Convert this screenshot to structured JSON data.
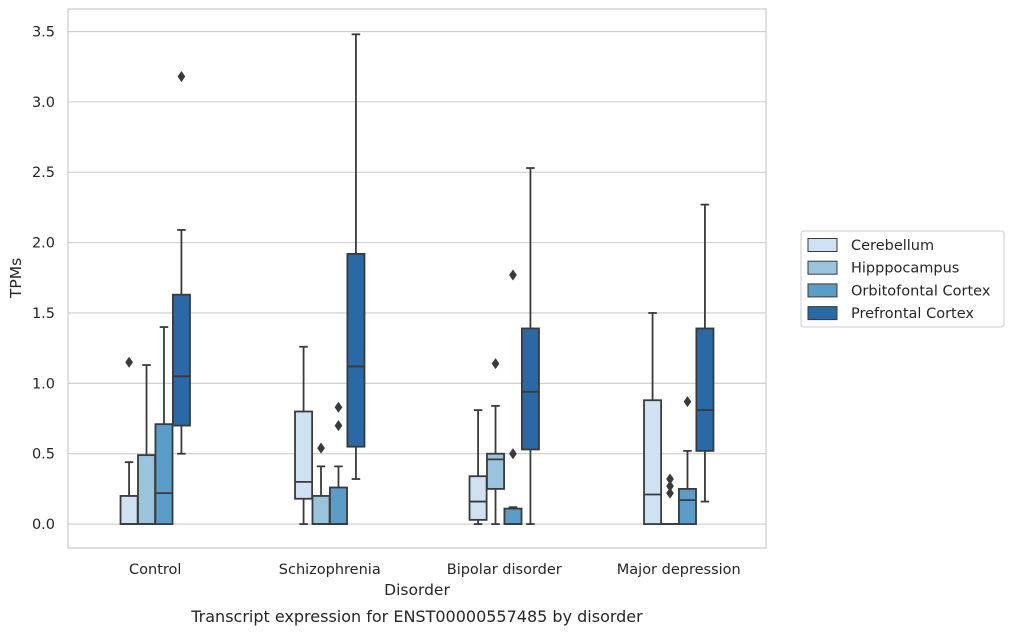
{
  "caption": "Transcript expression for ENST00000557485 by disorder",
  "chart_data": {
    "type": "box",
    "title": "",
    "xlabel": "Disorder",
    "ylabel": "TPMs",
    "ylim": [
      -0.17,
      3.66
    ],
    "yticks": [
      "0.0",
      "0.5",
      "1.0",
      "1.5",
      "2.0",
      "2.5",
      "3.0",
      "3.5"
    ],
    "ytick_values": [
      0,
      0.5,
      1.0,
      1.5,
      2.0,
      2.5,
      3.0,
      3.5
    ],
    "grid": true,
    "legend_position": "right",
    "categories": [
      "Control",
      "Schizophrenia",
      "Bipolar disorder",
      "Major depression"
    ],
    "series": [
      {
        "name": "Cerebellum",
        "color": "#d0e1f2",
        "boxes": [
          {
            "whisker_low": 0.0,
            "q1": 0.0,
            "median": 0.0,
            "q3": 0.2,
            "whisker_high": 0.44,
            "outliers": [
              1.15
            ]
          },
          {
            "whisker_low": 0.0,
            "q1": 0.18,
            "median": 0.3,
            "q3": 0.8,
            "whisker_high": 1.26,
            "outliers": []
          },
          {
            "whisker_low": 0.0,
            "q1": 0.03,
            "median": 0.16,
            "q3": 0.34,
            "whisker_high": 0.81,
            "outliers": []
          },
          {
            "whisker_low": 0.0,
            "q1": 0.0,
            "median": 0.21,
            "q3": 0.88,
            "whisker_high": 1.5,
            "outliers": []
          }
        ]
      },
      {
        "name": "Hipppocampus",
        "color": "#9ac3dc",
        "boxes": [
          {
            "whisker_low": 0.0,
            "q1": 0.0,
            "median": 0.0,
            "q3": 0.49,
            "whisker_high": 1.13,
            "outliers": []
          },
          {
            "whisker_low": 0.0,
            "q1": 0.0,
            "median": 0.0,
            "q3": 0.2,
            "whisker_high": 0.41,
            "outliers": [
              0.54
            ]
          },
          {
            "whisker_low": 0.0,
            "q1": 0.25,
            "median": 0.46,
            "q3": 0.5,
            "whisker_high": 0.84,
            "outliers": [
              1.14
            ]
          },
          {
            "whisker_low": 0.0,
            "q1": 0.0,
            "median": 0.0,
            "q3": 0.0,
            "whisker_high": 0.0,
            "outliers": [
              0.22,
              0.27,
              0.32
            ]
          }
        ]
      },
      {
        "name": "Orbitofontal Cortex",
        "color": "#5c9cc8",
        "boxes": [
          {
            "whisker_low": 0.0,
            "q1": 0.0,
            "median": 0.22,
            "q3": 0.71,
            "whisker_high": 1.4,
            "outliers": []
          },
          {
            "whisker_low": 0.0,
            "q1": 0.0,
            "median": 0.0,
            "q3": 0.26,
            "whisker_high": 0.41,
            "outliers": [
              0.7,
              0.83
            ]
          },
          {
            "whisker_low": 0.0,
            "q1": 0.0,
            "median": 0.0,
            "q3": 0.11,
            "whisker_high": 0.12,
            "outliers": [
              0.5,
              1.77
            ]
          },
          {
            "whisker_low": 0.0,
            "q1": 0.0,
            "median": 0.17,
            "q3": 0.25,
            "whisker_high": 0.52,
            "outliers": [
              0.87
            ]
          }
        ]
      },
      {
        "name": "Prefrontal Cortex",
        "color": "#2a68a6",
        "boxes": [
          {
            "whisker_low": 0.5,
            "q1": 0.7,
            "median": 1.05,
            "q3": 1.63,
            "whisker_high": 2.09,
            "outliers": [
              3.18
            ]
          },
          {
            "whisker_low": 0.32,
            "q1": 0.55,
            "median": 1.12,
            "q3": 1.92,
            "whisker_high": 3.48,
            "outliers": []
          },
          {
            "whisker_low": 0.0,
            "q1": 0.53,
            "median": 0.94,
            "q3": 1.39,
            "whisker_high": 2.53,
            "outliers": []
          },
          {
            "whisker_low": 0.16,
            "q1": 0.52,
            "median": 0.81,
            "q3": 1.39,
            "whisker_high": 2.27,
            "outliers": []
          }
        ]
      }
    ]
  }
}
